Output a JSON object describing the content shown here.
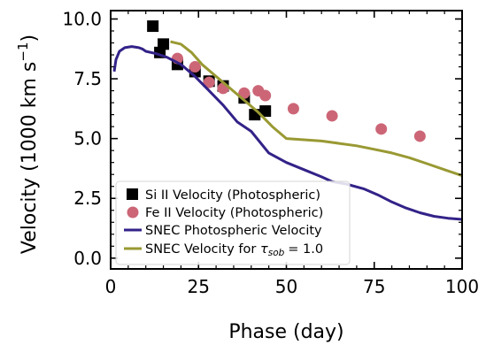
{
  "chart_data": {
    "type": "scatter",
    "xlabel": "Phase (day)",
    "ylabel": "Velocity (1000  km s",
    "ylabel_sup": "−1",
    "ylabel_close": ")",
    "xlim": [
      0,
      100
    ],
    "ylim": [
      -0.45,
      10.35
    ],
    "xticks": [
      0,
      25,
      50,
      75,
      100
    ],
    "xtick_labels": [
      "0",
      "25",
      "50",
      "75",
      "100"
    ],
    "yticks": [
      0,
      2.5,
      5,
      7.5,
      10
    ],
    "ytick_labels": [
      "0.0",
      "2.5",
      "5.0",
      "7.5",
      "10.0"
    ],
    "grid": false,
    "legend_position": "lower-left",
    "series": [
      {
        "name": "Si II Velocity (Photospheric)",
        "kind": "scatter",
        "marker": "square",
        "color": "#000000",
        "points": [
          [
            12,
            9.7
          ],
          [
            14,
            8.6
          ],
          [
            15,
            8.95
          ],
          [
            19,
            8.1
          ],
          [
            24,
            7.8
          ],
          [
            28,
            7.4
          ],
          [
            32,
            7.2
          ],
          [
            38,
            6.7
          ],
          [
            41,
            6.0
          ],
          [
            44,
            6.15
          ]
        ]
      },
      {
        "name": "Fe II Velocity (Photospheric)",
        "kind": "scatter",
        "marker": "circle",
        "color": "#cc6677",
        "points": [
          [
            19,
            8.35
          ],
          [
            24,
            8.0
          ],
          [
            28,
            7.35
          ],
          [
            32,
            7.1
          ],
          [
            38,
            6.9
          ],
          [
            42,
            7.0
          ],
          [
            44,
            6.8
          ],
          [
            52,
            6.25
          ],
          [
            63,
            5.95
          ],
          [
            77,
            5.4
          ],
          [
            88,
            5.1
          ]
        ]
      },
      {
        "name": "SNEC Photospheric Velocity",
        "kind": "line",
        "color": "#332288",
        "points": [
          [
            1,
            7.8
          ],
          [
            1.5,
            8.3
          ],
          [
            2.5,
            8.65
          ],
          [
            4,
            8.8
          ],
          [
            6,
            8.85
          ],
          [
            8,
            8.8
          ],
          [
            9,
            8.75
          ],
          [
            10,
            8.65
          ],
          [
            13,
            8.55
          ],
          [
            16,
            8.4
          ],
          [
            20,
            8.1
          ],
          [
            24,
            7.6
          ],
          [
            28,
            7.0
          ],
          [
            32,
            6.4
          ],
          [
            36,
            5.7
          ],
          [
            40,
            5.3
          ],
          [
            45,
            4.4
          ],
          [
            50,
            4.0
          ],
          [
            55,
            3.7
          ],
          [
            60,
            3.4
          ],
          [
            63,
            3.2
          ],
          [
            67,
            3.1
          ],
          [
            72,
            2.9
          ],
          [
            76,
            2.65
          ],
          [
            80,
            2.35
          ],
          [
            84,
            2.1
          ],
          [
            88,
            1.9
          ],
          [
            92,
            1.75
          ],
          [
            96,
            1.67
          ],
          [
            100,
            1.62
          ]
        ]
      },
      {
        "name": "SNEC Velocity for ",
        "name_tail": "= 1.0",
        "kind": "line",
        "color": "#999933",
        "points": [
          [
            17,
            9.05
          ],
          [
            20,
            8.95
          ],
          [
            23,
            8.6
          ],
          [
            26,
            8.1
          ],
          [
            30,
            7.6
          ],
          [
            34,
            7.1
          ],
          [
            38,
            6.6
          ],
          [
            42,
            6.1
          ],
          [
            46,
            5.5
          ],
          [
            50,
            5.0
          ],
          [
            55,
            4.95
          ],
          [
            60,
            4.9
          ],
          [
            65,
            4.8
          ],
          [
            70,
            4.7
          ],
          [
            75,
            4.55
          ],
          [
            80,
            4.4
          ],
          [
            85,
            4.2
          ],
          [
            90,
            3.95
          ],
          [
            95,
            3.7
          ],
          [
            100,
            3.45
          ]
        ]
      }
    ],
    "colors": {
      "si_marker": "#000000",
      "fe_marker": "#cc6677",
      "phot_line": "#332288",
      "sob_line": "#999933"
    }
  }
}
